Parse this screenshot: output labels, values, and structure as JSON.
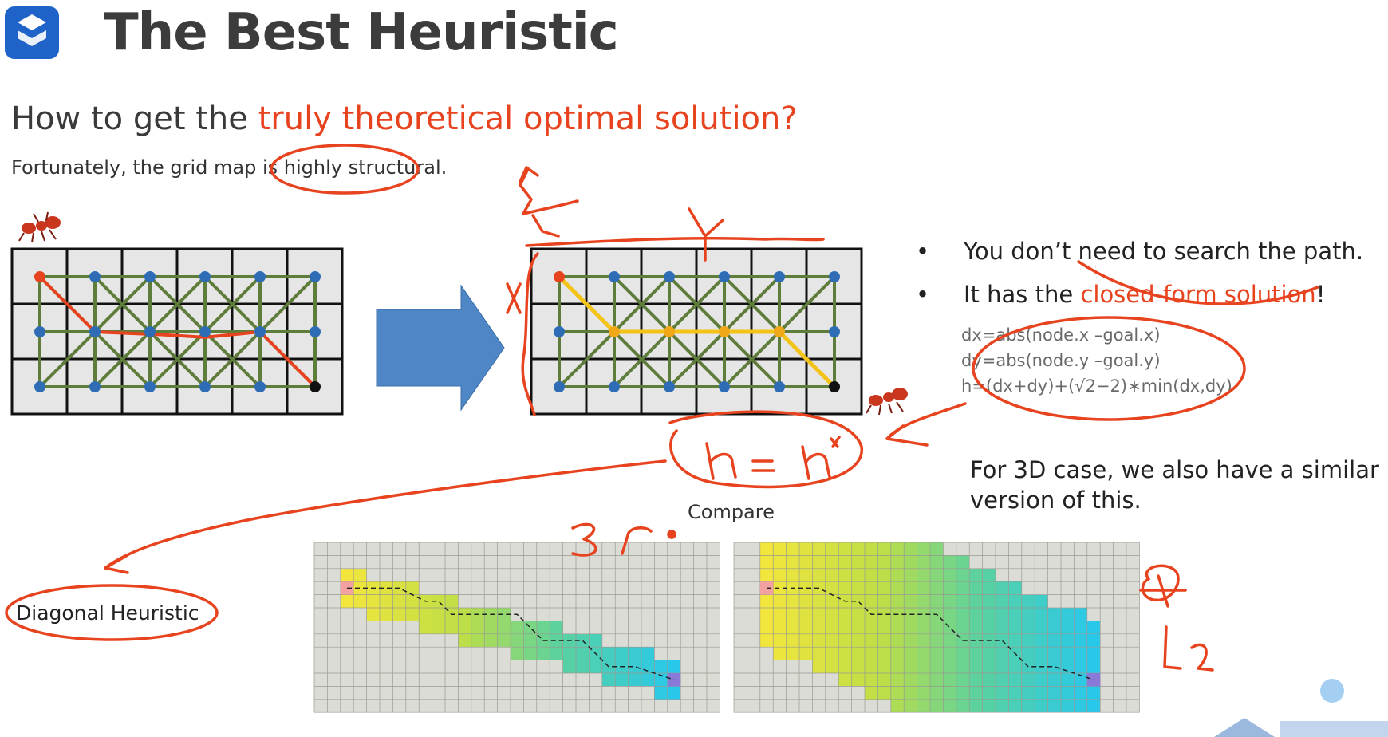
{
  "slide": {
    "title": "The Best Heuristic",
    "question_prefix": "How to get the ",
    "question_highlight": "truly theoretical optimal solution?",
    "subtitle": "Fortunately, the grid map is highly structural."
  },
  "bullets": [
    {
      "text": "You don’t need to search the path."
    },
    {
      "prefix": "It has the ",
      "highlight": "closed-form solution",
      "suffix": "!"
    }
  ],
  "formulas": [
    "dx=abs(node.x –goal.x)",
    "dy=abs(node.y –goal.y)",
    "h=(dx+dy)+(√2−2)∗min(dx,dy)"
  ],
  "case_3d": "For 3D case, we also have a similar version of this.",
  "compare_label": "Compare",
  "diagonal_label": "Diagonal Heuristic",
  "colors": {
    "accent": "#e8431f",
    "logo": "#1f63c9",
    "arrow": "#4f86c6",
    "grid_edge": "#5e7d3b",
    "node": "#2e6db5",
    "optimal_path": "#f3c317",
    "naive_path": "#e8431f"
  }
}
